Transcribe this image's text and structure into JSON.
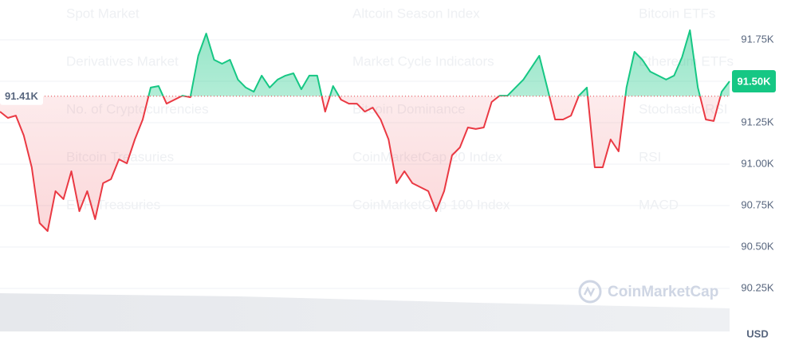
{
  "chart_data": {
    "type": "line",
    "background_text": [
      "Spot Market",
      "Altcoin Season Index",
      "Bitcoin ETFs",
      "Derivatives Market",
      "Market Cycle Indicators",
      "Ethereum ETFs",
      "No. of Cryptocurrencies",
      "Bitcoin Dominance",
      "Stochastic RSI",
      "Bitcoin Treasuries",
      "CoinMarketCap 20 Index",
      "RSI",
      "ETH Treasuries",
      "CoinMarketCap 100 Index",
      "MACD"
    ],
    "values": [
      91317,
      91279,
      91293,
      91173,
      90981,
      90644,
      90596,
      90837,
      90789,
      90957,
      90716,
      90837,
      90668,
      90885,
      90909,
      91029,
      91005,
      91149,
      91269,
      91462,
      91471,
      91365,
      91389,
      91413,
      91404,
      91654,
      91788,
      91630,
      91606,
      91630,
      91510,
      91462,
      91437,
      91534,
      91462,
      91510,
      91534,
      91548,
      91452,
      91534,
      91534,
      91317,
      91471,
      91389,
      91365,
      91365,
      91317,
      91341,
      91269,
      91149,
      90885,
      90957,
      90885,
      90861,
      90837,
      90716,
      90837,
      91053,
      91101,
      91221,
      91212,
      91221,
      91375,
      91413,
      91413,
      91462,
      91510,
      91582,
      91654,
      91462,
      91269,
      91269,
      91293,
      91413,
      91462,
      90981,
      90981,
      91149,
      91077,
      91462,
      91678,
      91630,
      91558,
      91534,
      91510,
      91534,
      91644,
      91808,
      91462,
      91269,
      91260,
      91437,
      91500
    ],
    "up_color": "#16c784",
    "down_color": "#ea3943",
    "baseline": {
      "value": 91410,
      "label": "91.41K"
    },
    "current": {
      "value": 91500,
      "label": "91.50K"
    },
    "ylim": [
      90250,
      91750
    ],
    "yticks": [
      {
        "value": 90250,
        "label": "90.25K"
      },
      {
        "value": 90500,
        "label": "90.50K"
      },
      {
        "value": 90750,
        "label": "90.75K"
      },
      {
        "value": 91000,
        "label": "91.00K"
      },
      {
        "value": 91250,
        "label": "91.25K"
      },
      {
        "value": 91500,
        "label": "91.50K"
      },
      {
        "value": 91750,
        "label": "91.75K"
      }
    ],
    "grid": true,
    "unit": "USD",
    "watermark": "CoinMarketCap"
  }
}
